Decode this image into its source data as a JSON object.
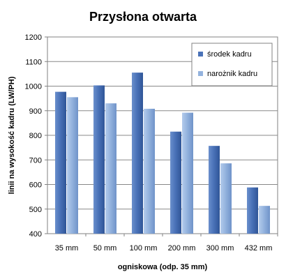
{
  "chart_data": {
    "type": "bar",
    "title": "Przysłona otwarta",
    "xlabel": "ogniskowa (odp. 35 mm)",
    "ylabel": "linii na wysokość kadru (LW/PH)",
    "categories": [
      "35 mm",
      "50 mm",
      "100 mm",
      "200 mm",
      "300 mm",
      "432 mm"
    ],
    "series": [
      {
        "name": "środek kadru",
        "values": [
          977,
          1003,
          1055,
          815,
          757,
          588
        ]
      },
      {
        "name": "narożnik kadru",
        "values": [
          955,
          930,
          908,
          892,
          686,
          513
        ]
      }
    ],
    "ylim": [
      400,
      1200
    ],
    "yticks": [
      400,
      500,
      600,
      700,
      800,
      900,
      1000,
      1100,
      1200
    ],
    "grid": true,
    "legend_position": "top-right",
    "colors": {
      "series": [
        "#4a72b8",
        "#94b3de"
      ],
      "series_dark": [
        "#2f5597",
        "#6f93c9"
      ],
      "grid": "#888888",
      "axis": "#808080"
    }
  }
}
